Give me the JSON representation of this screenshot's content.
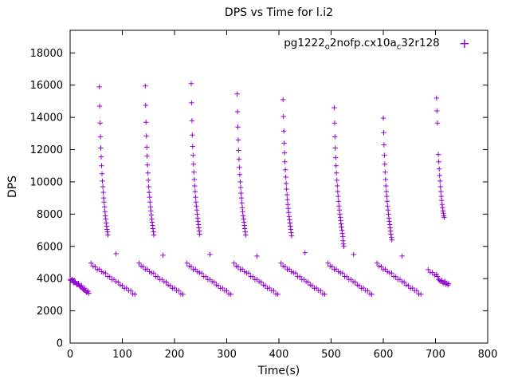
{
  "title": "DPS vs Time for l.i2",
  "legend": {
    "parts": [
      "pg1222",
      "o",
      "2nofp.cx10a",
      "c",
      "32r128"
    ],
    "full_name": "pg1222_o2nofp.cx10a_c32r128",
    "marker_glyph": "+"
  },
  "colors": {
    "marker": "#9400D3",
    "border": "#000000",
    "text": "#000000"
  },
  "chart_data": {
    "type": "scatter",
    "title": "DPS vs Time for l.i2",
    "xlabel": "Time(s)",
    "ylabel": "DPS",
    "xlim": [
      0,
      800
    ],
    "ylim": [
      0,
      19400
    ],
    "xticks": [
      0,
      100,
      200,
      300,
      400,
      500,
      600,
      700,
      800
    ],
    "yticks": [
      0,
      2000,
      4000,
      6000,
      8000,
      10000,
      12000,
      14000,
      16000,
      18000
    ],
    "grid": false,
    "legend_position": "top-right-inside",
    "marker": "plus",
    "series_name": "pg1222_o2nofp.cx10a_c32r128",
    "points": [
      [
        56,
        15900
      ],
      [
        56.7,
        14700
      ],
      [
        57.4,
        13650
      ],
      [
        58.1,
        12800
      ],
      [
        58.8,
        12100
      ],
      [
        59.5,
        11550
      ],
      [
        60.3,
        11000
      ],
      [
        61.1,
        10500
      ],
      [
        61.9,
        10050
      ],
      [
        62.7,
        9700
      ],
      [
        63.5,
        9350
      ],
      [
        64.3,
        9000
      ],
      [
        65.1,
        8750
      ],
      [
        65.9,
        8450
      ],
      [
        66.7,
        8150
      ],
      [
        67.5,
        7900
      ],
      [
        68.3,
        7700
      ],
      [
        69.1,
        7450
      ],
      [
        69.9,
        7250
      ],
      [
        70.7,
        7050
      ],
      [
        71.5,
        6900
      ],
      [
        72.3,
        6700
      ],
      [
        144,
        15950
      ],
      [
        144.7,
        14750
      ],
      [
        145.4,
        13700
      ],
      [
        146.1,
        12850
      ],
      [
        146.8,
        12150
      ],
      [
        147.5,
        11600
      ],
      [
        148.3,
        11050
      ],
      [
        149.1,
        10550
      ],
      [
        149.9,
        10100
      ],
      [
        150.7,
        9700
      ],
      [
        151.5,
        9350
      ],
      [
        152.3,
        9050
      ],
      [
        153.1,
        8750
      ],
      [
        153.9,
        8450
      ],
      [
        154.7,
        8200
      ],
      [
        155.5,
        7950
      ],
      [
        156.3,
        7700
      ],
      [
        157.1,
        7500
      ],
      [
        157.9,
        7300
      ],
      [
        158.7,
        7100
      ],
      [
        159.5,
        6900
      ],
      [
        160.3,
        6700
      ],
      [
        232,
        16100
      ],
      [
        232.7,
        14900
      ],
      [
        233.4,
        13800
      ],
      [
        234.1,
        12900
      ],
      [
        234.8,
        12200
      ],
      [
        235.5,
        11650
      ],
      [
        236.3,
        11100
      ],
      [
        237.1,
        10600
      ],
      [
        237.9,
        10150
      ],
      [
        238.7,
        9750
      ],
      [
        239.5,
        9400
      ],
      [
        240.3,
        9050
      ],
      [
        241.1,
        8750
      ],
      [
        241.9,
        8500
      ],
      [
        242.7,
        8250
      ],
      [
        243.5,
        8000
      ],
      [
        244.3,
        7750
      ],
      [
        245.1,
        7550
      ],
      [
        245.9,
        7350
      ],
      [
        246.7,
        7150
      ],
      [
        247.5,
        6950
      ],
      [
        248.3,
        6750
      ],
      [
        320,
        15450
      ],
      [
        320.7,
        14350
      ],
      [
        321.4,
        13400
      ],
      [
        322.1,
        12600
      ],
      [
        322.8,
        11950
      ],
      [
        323.5,
        11400
      ],
      [
        324.3,
        10900
      ],
      [
        325.1,
        10450
      ],
      [
        325.9,
        10000
      ],
      [
        326.7,
        9650
      ],
      [
        327.5,
        9300
      ],
      [
        328.3,
        9000
      ],
      [
        329.1,
        8700
      ],
      [
        329.9,
        8400
      ],
      [
        330.7,
        8150
      ],
      [
        331.5,
        7900
      ],
      [
        332.3,
        7700
      ],
      [
        333.1,
        7500
      ],
      [
        333.9,
        7300
      ],
      [
        334.7,
        7100
      ],
      [
        335.5,
        6900
      ],
      [
        336.3,
        6700
      ],
      [
        408,
        15100
      ],
      [
        408.7,
        14050
      ],
      [
        409.4,
        13150
      ],
      [
        410.1,
        12400
      ],
      [
        410.8,
        11800
      ],
      [
        411.5,
        11250
      ],
      [
        412.3,
        10750
      ],
      [
        413.1,
        10300
      ],
      [
        413.9,
        9900
      ],
      [
        414.7,
        9550
      ],
      [
        415.5,
        9200
      ],
      [
        416.3,
        8900
      ],
      [
        417.1,
        8600
      ],
      [
        417.9,
        8350
      ],
      [
        418.7,
        8100
      ],
      [
        419.5,
        7850
      ],
      [
        420.3,
        7650
      ],
      [
        421.1,
        7450
      ],
      [
        421.9,
        7250
      ],
      [
        422.7,
        7050
      ],
      [
        423.5,
        6850
      ],
      [
        424.3,
        6650
      ],
      [
        506,
        14600
      ],
      [
        506.7,
        13650
      ],
      [
        507.4,
        12800
      ],
      [
        508.1,
        12100
      ],
      [
        508.8,
        11500
      ],
      [
        509.5,
        11000
      ],
      [
        510.3,
        10550
      ],
      [
        511.1,
        10100
      ],
      [
        511.9,
        9750
      ],
      [
        512.7,
        9400
      ],
      [
        513.5,
        9100
      ],
      [
        514.3,
        8800
      ],
      [
        515.1,
        8500
      ],
      [
        515.9,
        8250
      ],
      [
        516.7,
        8000
      ],
      [
        517.5,
        7800
      ],
      [
        518.3,
        7600
      ],
      [
        519.1,
        7400
      ],
      [
        519.9,
        7200
      ],
      [
        520.7,
        7000
      ],
      [
        521.5,
        6800
      ],
      [
        522.3,
        6600
      ],
      [
        522.9,
        6350
      ],
      [
        523.7,
        6150
      ],
      [
        524.5,
        6000
      ],
      [
        600,
        13950
      ],
      [
        600.7,
        13050
      ],
      [
        601.4,
        12300
      ],
      [
        602.1,
        11650
      ],
      [
        602.8,
        11100
      ],
      [
        603.5,
        10600
      ],
      [
        604.3,
        10150
      ],
      [
        605.1,
        9750
      ],
      [
        605.9,
        9400
      ],
      [
        606.7,
        9100
      ],
      [
        607.5,
        8800
      ],
      [
        608.3,
        8500
      ],
      [
        609.1,
        8250
      ],
      [
        609.9,
        8000
      ],
      [
        610.7,
        7750
      ],
      [
        611.5,
        7550
      ],
      [
        612.3,
        7350
      ],
      [
        613.1,
        7150
      ],
      [
        613.9,
        6950
      ],
      [
        614.7,
        6750
      ],
      [
        615.5,
        6550
      ],
      [
        616.3,
        6400
      ],
      [
        702,
        15200
      ],
      [
        702.8,
        14400
      ],
      [
        703.6,
        13650
      ],
      [
        705.5,
        11700
      ],
      [
        706.3,
        11250
      ],
      [
        707.1,
        10800
      ],
      [
        707.9,
        10400
      ],
      [
        708.7,
        10050
      ],
      [
        709.5,
        9700
      ],
      [
        710.3,
        9400
      ],
      [
        711.1,
        9100
      ],
      [
        711.9,
        8850
      ],
      [
        712.7,
        8600
      ],
      [
        713.5,
        8400
      ],
      [
        714.3,
        8200
      ],
      [
        715.1,
        8050
      ],
      [
        715.9,
        7900
      ],
      [
        716.7,
        7800
      ],
      [
        88,
        5550
      ],
      [
        178,
        5450
      ],
      [
        268,
        5500
      ],
      [
        358,
        5400
      ],
      [
        450,
        5600
      ],
      [
        543,
        5500
      ],
      [
        636,
        5400
      ],
      [
        0,
        3950
      ],
      [
        3,
        3900
      ],
      [
        6,
        3820
      ],
      [
        9,
        3760
      ],
      [
        12,
        3700
      ],
      [
        15,
        3640
      ],
      [
        18,
        3560
      ],
      [
        21,
        3480
      ],
      [
        24,
        3380
      ],
      [
        27,
        3300
      ],
      [
        30,
        3220
      ],
      [
        33,
        3160
      ],
      [
        36,
        3090
      ],
      [
        1,
        3880
      ],
      [
        4,
        3950
      ],
      [
        7,
        3740
      ],
      [
        10,
        3820
      ],
      [
        13,
        3620
      ],
      [
        16,
        3700
      ],
      [
        19,
        3500
      ],
      [
        22,
        3570
      ],
      [
        25,
        3320
      ],
      [
        28,
        3400
      ],
      [
        31,
        3150
      ],
      [
        34,
        3230
      ],
      [
        40,
        4960
      ],
      [
        44,
        4770
      ],
      [
        48,
        4740
      ],
      [
        52,
        4560
      ],
      [
        56,
        4590
      ],
      [
        60,
        4430
      ],
      [
        64,
        4360
      ],
      [
        68,
        4340
      ],
      [
        72,
        4130
      ],
      [
        76,
        4120
      ],
      [
        80,
        3940
      ],
      [
        84,
        3950
      ],
      [
        88,
        3810
      ],
      [
        92,
        3785
      ],
      [
        96,
        3605
      ],
      [
        100,
        3565
      ],
      [
        104,
        3395
      ],
      [
        108,
        3415
      ],
      [
        112,
        3255
      ],
      [
        116,
        3255
      ],
      [
        120,
        3055
      ],
      [
        124,
        3035
      ],
      [
        132,
        4960
      ],
      [
        136,
        4770
      ],
      [
        140,
        4740
      ],
      [
        144,
        4560
      ],
      [
        148,
        4590
      ],
      [
        152,
        4430
      ],
      [
        156,
        4360
      ],
      [
        160,
        4340
      ],
      [
        164,
        4130
      ],
      [
        168,
        4120
      ],
      [
        172,
        3940
      ],
      [
        176,
        3950
      ],
      [
        180,
        3810
      ],
      [
        184,
        3785
      ],
      [
        188,
        3605
      ],
      [
        192,
        3565
      ],
      [
        196,
        3395
      ],
      [
        200,
        3415
      ],
      [
        204,
        3255
      ],
      [
        208,
        3255
      ],
      [
        212,
        3055
      ],
      [
        216,
        3035
      ],
      [
        224,
        4960
      ],
      [
        228,
        4770
      ],
      [
        232,
        4740
      ],
      [
        236,
        4560
      ],
      [
        240,
        4590
      ],
      [
        244,
        4430
      ],
      [
        248,
        4360
      ],
      [
        252,
        4340
      ],
      [
        256,
        4130
      ],
      [
        260,
        4120
      ],
      [
        264,
        3940
      ],
      [
        268,
        3950
      ],
      [
        272,
        3810
      ],
      [
        276,
        3785
      ],
      [
        280,
        3605
      ],
      [
        284,
        3565
      ],
      [
        288,
        3395
      ],
      [
        292,
        3415
      ],
      [
        296,
        3255
      ],
      [
        300,
        3255
      ],
      [
        304,
        3055
      ],
      [
        308,
        3035
      ],
      [
        314,
        4960
      ],
      [
        318,
        4770
      ],
      [
        322,
        4740
      ],
      [
        326,
        4560
      ],
      [
        330,
        4590
      ],
      [
        334,
        4430
      ],
      [
        338,
        4360
      ],
      [
        342,
        4340
      ],
      [
        346,
        4130
      ],
      [
        350,
        4120
      ],
      [
        354,
        3940
      ],
      [
        358,
        3950
      ],
      [
        362,
        3810
      ],
      [
        366,
        3785
      ],
      [
        370,
        3605
      ],
      [
        374,
        3565
      ],
      [
        378,
        3395
      ],
      [
        382,
        3415
      ],
      [
        386,
        3255
      ],
      [
        390,
        3255
      ],
      [
        394,
        3055
      ],
      [
        398,
        3035
      ],
      [
        404,
        4960
      ],
      [
        408,
        4770
      ],
      [
        412,
        4740
      ],
      [
        416,
        4560
      ],
      [
        420,
        4590
      ],
      [
        424,
        4430
      ],
      [
        428,
        4360
      ],
      [
        432,
        4340
      ],
      [
        436,
        4130
      ],
      [
        440,
        4120
      ],
      [
        444,
        3940
      ],
      [
        448,
        3950
      ],
      [
        452,
        3810
      ],
      [
        456,
        3785
      ],
      [
        460,
        3605
      ],
      [
        464,
        3565
      ],
      [
        468,
        3395
      ],
      [
        472,
        3415
      ],
      [
        476,
        3255
      ],
      [
        480,
        3255
      ],
      [
        484,
        3055
      ],
      [
        488,
        3035
      ],
      [
        494,
        4960
      ],
      [
        498,
        4770
      ],
      [
        502,
        4740
      ],
      [
        506,
        4560
      ],
      [
        510,
        4590
      ],
      [
        514,
        4430
      ],
      [
        518,
        4360
      ],
      [
        522,
        4340
      ],
      [
        526,
        4130
      ],
      [
        530,
        4120
      ],
      [
        534,
        3940
      ],
      [
        538,
        3950
      ],
      [
        542,
        3810
      ],
      [
        546,
        3785
      ],
      [
        550,
        3605
      ],
      [
        554,
        3565
      ],
      [
        558,
        3395
      ],
      [
        562,
        3415
      ],
      [
        566,
        3255
      ],
      [
        570,
        3255
      ],
      [
        574,
        3055
      ],
      [
        578,
        3035
      ],
      [
        588,
        4960
      ],
      [
        592,
        4770
      ],
      [
        596,
        4740
      ],
      [
        600,
        4560
      ],
      [
        604,
        4590
      ],
      [
        608,
        4430
      ],
      [
        612,
        4360
      ],
      [
        616,
        4340
      ],
      [
        620,
        4130
      ],
      [
        624,
        4120
      ],
      [
        628,
        3940
      ],
      [
        632,
        3950
      ],
      [
        636,
        3810
      ],
      [
        640,
        3785
      ],
      [
        644,
        3605
      ],
      [
        648,
        3565
      ],
      [
        652,
        3395
      ],
      [
        656,
        3415
      ],
      [
        660,
        3255
      ],
      [
        664,
        3255
      ],
      [
        668,
        3055
      ],
      [
        672,
        3035
      ],
      [
        686,
        4560
      ],
      [
        690,
        4390
      ],
      [
        694,
        4380
      ],
      [
        698,
        4220
      ],
      [
        702,
        4270
      ],
      [
        704,
        4130
      ],
      [
        706,
        3950
      ],
      [
        708,
        3880
      ],
      [
        710,
        3820
      ],
      [
        712,
        3900
      ],
      [
        714,
        3760
      ],
      [
        716,
        3700
      ],
      [
        718,
        3840
      ],
      [
        720,
        3640
      ],
      [
        722,
        3720
      ],
      [
        724,
        3600
      ],
      [
        725,
        3680
      ]
    ]
  }
}
